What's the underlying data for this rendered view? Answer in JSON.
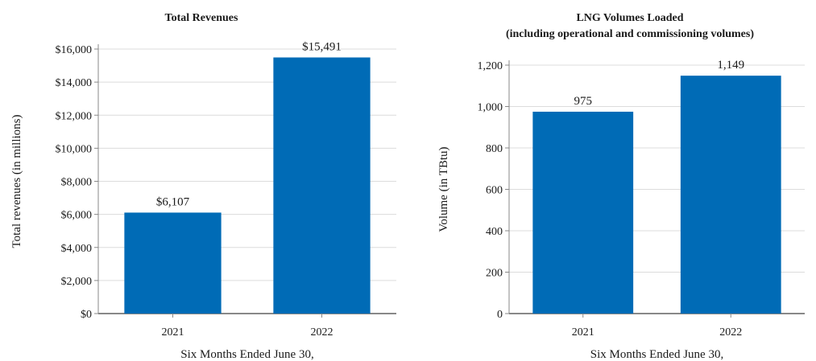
{
  "chart_data": [
    {
      "type": "bar",
      "title": "Total Revenues",
      "subtitle": "",
      "xlabel": "Six Months Ended June 30,",
      "ylabel": "Total revenues (in millions)",
      "categories": [
        "2021",
        "2022"
      ],
      "values": [
        6107,
        15491
      ],
      "value_labels": [
        "$6,107",
        "$15,491"
      ],
      "ylim": [
        0,
        16000
      ],
      "yticks": [
        0,
        2000,
        4000,
        6000,
        8000,
        10000,
        12000,
        14000,
        16000
      ],
      "ytick_labels": [
        "$0",
        "$2,000",
        "$4,000",
        "$6,000",
        "$8,000",
        "$10,000",
        "$12,000",
        "$14,000",
        "$16,000"
      ],
      "grid": true,
      "bar_color": "#006BB6"
    },
    {
      "type": "bar",
      "title": "LNG Volumes Loaded",
      "subtitle": "(including operational and commissioning volumes)",
      "xlabel": "Six Months Ended June 30,",
      "ylabel": "Volume (in TBtu)",
      "categories": [
        "2021",
        "2022"
      ],
      "values": [
        975,
        1149
      ],
      "value_labels": [
        "975",
        "1,149"
      ],
      "ylim": [
        0,
        1200
      ],
      "yticks": [
        0,
        200,
        400,
        600,
        800,
        1000,
        1200
      ],
      "ytick_labels": [
        "0",
        "200",
        "400",
        "600",
        "800",
        "1,000",
        "1,200"
      ],
      "grid": true,
      "bar_color": "#006BB6"
    }
  ]
}
